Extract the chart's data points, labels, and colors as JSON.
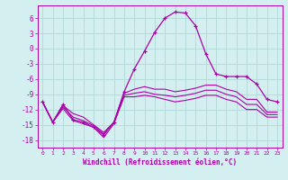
{
  "xlabel": "Windchill (Refroidissement éolien,°C)",
  "bg_color": "#d4efef",
  "line_color": "#aa00aa",
  "grid_color": "#b0d8d8",
  "xlim": [
    -0.5,
    23.5
  ],
  "ylim": [
    -19.5,
    8.5
  ],
  "yticks": [
    -18,
    -15,
    -12,
    -9,
    -6,
    -3,
    0,
    3,
    6
  ],
  "xticks": [
    0,
    1,
    2,
    3,
    4,
    5,
    6,
    7,
    8,
    9,
    10,
    11,
    12,
    13,
    14,
    15,
    16,
    17,
    18,
    19,
    20,
    21,
    22,
    23
  ],
  "hours": [
    0,
    1,
    2,
    3,
    4,
    5,
    6,
    7,
    8,
    9,
    10,
    11,
    12,
    13,
    14,
    15,
    16,
    17,
    18,
    19,
    20,
    21,
    22,
    23
  ],
  "main_line": [
    -10.5,
    -14.5,
    -11.0,
    -14.0,
    -14.5,
    -15.5,
    -17.0,
    -14.5,
    -8.5,
    -4.0,
    -0.5,
    3.2,
    6.0,
    7.2,
    7.0,
    4.5,
    -1.0,
    -5.0,
    -5.5,
    -5.5,
    -5.5,
    -7.0,
    -10.0,
    -10.5
  ],
  "line2": [
    -10.5,
    -14.5,
    -11.2,
    -12.8,
    -13.5,
    -15.0,
    -16.5,
    -14.5,
    -8.8,
    -8.0,
    -7.5,
    -8.0,
    -8.0,
    -8.5,
    -8.2,
    -7.8,
    -7.2,
    -7.2,
    -8.0,
    -8.5,
    -10.0,
    -10.0,
    -12.5,
    -12.5
  ],
  "line3": [
    -10.5,
    -14.5,
    -11.5,
    -13.5,
    -14.2,
    -15.2,
    -16.8,
    -14.5,
    -9.2,
    -8.8,
    -8.5,
    -9.0,
    -9.2,
    -9.5,
    -9.2,
    -8.8,
    -8.2,
    -8.2,
    -9.0,
    -9.5,
    -11.0,
    -11.0,
    -13.0,
    -13.0
  ],
  "line4": [
    -10.5,
    -14.5,
    -11.8,
    -14.2,
    -14.8,
    -15.5,
    -17.5,
    -14.8,
    -9.5,
    -9.5,
    -9.2,
    -9.5,
    -10.0,
    -10.5,
    -10.2,
    -9.8,
    -9.2,
    -9.2,
    -10.0,
    -10.5,
    -12.0,
    -12.0,
    -13.5,
    -13.5
  ]
}
